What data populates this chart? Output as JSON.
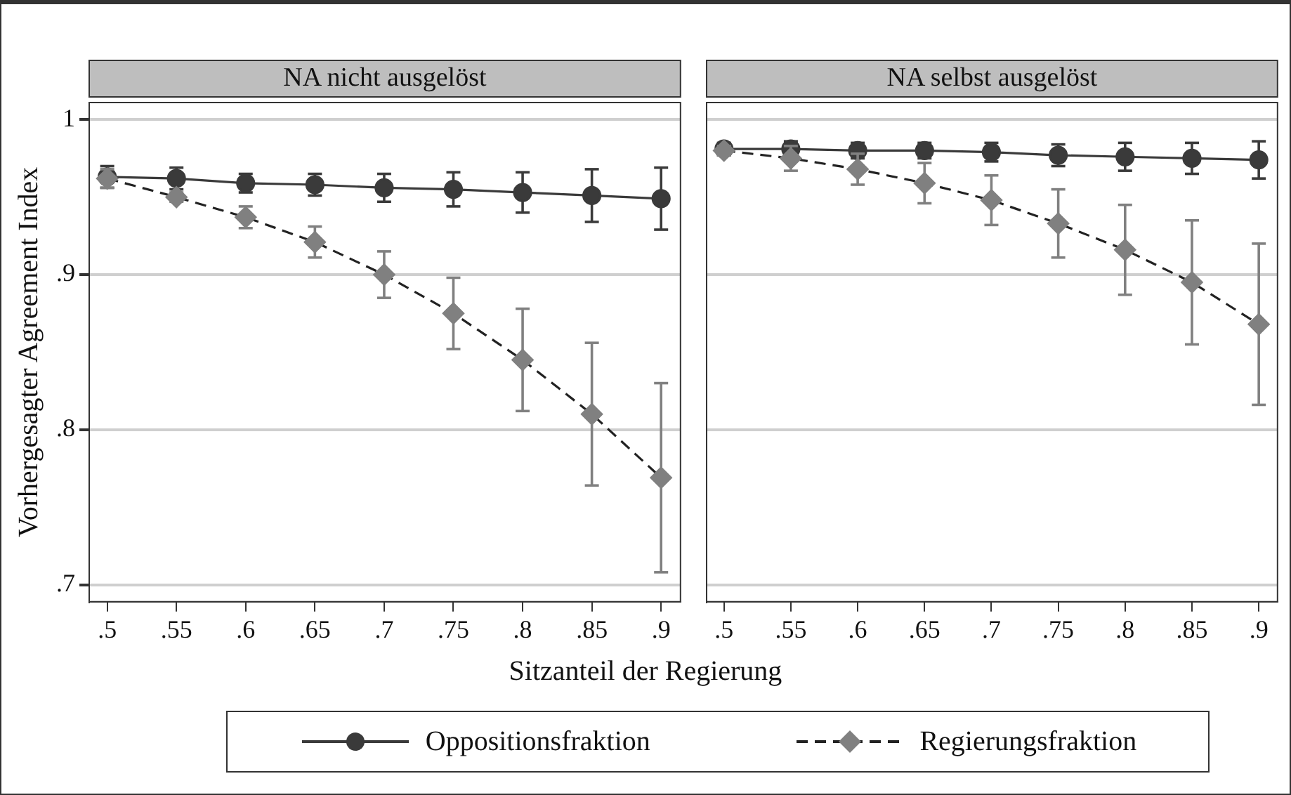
{
  "chart_data": [
    {
      "type": "line",
      "title": "NA nicht ausgelöst",
      "xlabel": "Sitzanteil der Regierung",
      "ylabel": "Vorhergesagter Agreement Index",
      "x": [
        0.5,
        0.55,
        0.6,
        0.65,
        0.7,
        0.75,
        0.8,
        0.85,
        0.9
      ],
      "xlim": [
        0.487,
        0.914
      ],
      "xticks": [
        {
          "value": 0.5,
          "label": ".5"
        },
        {
          "value": 0.55,
          "label": ".55"
        },
        {
          "value": 0.6,
          "label": ".6"
        },
        {
          "value": 0.65,
          "label": ".65"
        },
        {
          "value": 0.7,
          "label": ".7"
        },
        {
          "value": 0.75,
          "label": ".75"
        },
        {
          "value": 0.8,
          "label": ".8"
        },
        {
          "value": 0.85,
          "label": ".85"
        },
        {
          "value": 0.9,
          "label": ".9"
        }
      ],
      "ylim": [
        0.689,
        1.011
      ],
      "yticks": [
        {
          "value": 0.7,
          "label": ".7"
        },
        {
          "value": 0.8,
          "label": ".8"
        },
        {
          "value": 0.9,
          "label": ".9"
        },
        1
      ],
      "grid": "y",
      "legend": "bottom",
      "series": [
        {
          "name": "Oppositionsfraktion",
          "color": "#3a3a3a",
          "marker": "circle",
          "line_style": "solid",
          "values": [
            0.963,
            0.962,
            0.959,
            0.958,
            0.956,
            0.955,
            0.953,
            0.951,
            0.949
          ],
          "errors": [
            0.007,
            0.007,
            0.006,
            0.007,
            0.009,
            0.011,
            0.013,
            0.017,
            0.02
          ]
        },
        {
          "name": "Regierungsfraktion",
          "color": "#808080",
          "marker": "diamond",
          "line_style": "dashed",
          "values": [
            0.962,
            0.95,
            0.937,
            0.921,
            0.9,
            0.875,
            0.845,
            0.81,
            0.769
          ],
          "errors": [
            0.006,
            0.003,
            0.007,
            0.01,
            0.015,
            0.023,
            0.033,
            0.046,
            0.061
          ]
        }
      ]
    },
    {
      "type": "line",
      "title": "NA selbst ausgelöst",
      "x": [
        0.5,
        0.55,
        0.6,
        0.65,
        0.7,
        0.75,
        0.8,
        0.85,
        0.9
      ],
      "xlim": [
        0.487,
        0.914
      ],
      "xticks": [
        {
          "value": 0.5,
          "label": ".5"
        },
        {
          "value": 0.55,
          "label": ".55"
        },
        {
          "value": 0.6,
          "label": ".6"
        },
        {
          "value": 0.65,
          "label": ".65"
        },
        {
          "value": 0.7,
          "label": ".7"
        },
        {
          "value": 0.75,
          "label": ".75"
        },
        {
          "value": 0.8,
          "label": ".8"
        },
        {
          "value": 0.85,
          "label": ".85"
        },
        {
          "value": 0.9,
          "label": ".9"
        }
      ],
      "ylim": [
        0.689,
        1.011
      ],
      "yticks": [
        0.7,
        0.8,
        0.9,
        1
      ],
      "grid": "y",
      "tick_labels": "x",
      "series": [
        {
          "color": "#3a3a3a",
          "marker": "circle",
          "line_style": "solid",
          "values": [
            0.981,
            0.981,
            0.98,
            0.98,
            0.979,
            0.977,
            0.976,
            0.975,
            0.974
          ],
          "errors": [
            0.004,
            0.005,
            0.005,
            0.005,
            0.006,
            0.007,
            0.009,
            0.01,
            0.012
          ]
        },
        {
          "color": "#808080",
          "marker": "diamond",
          "line_style": "dashed",
          "values": [
            0.98,
            0.975,
            0.968,
            0.959,
            0.948,
            0.933,
            0.916,
            0.895,
            0.868
          ],
          "errors": [
            0.003,
            0.008,
            0.01,
            0.013,
            0.016,
            0.022,
            0.029,
            0.04,
            0.052
          ]
        }
      ]
    }
  ]
}
